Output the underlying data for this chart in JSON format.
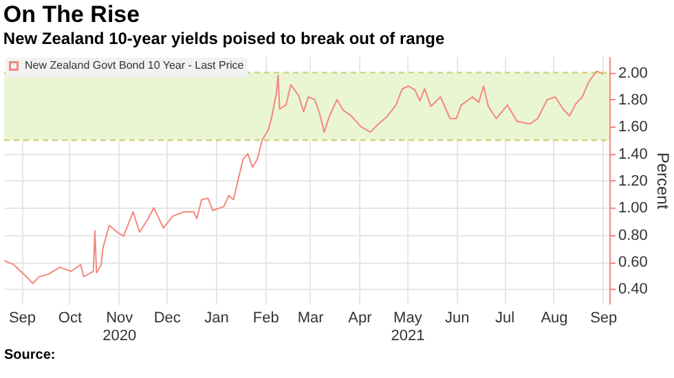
{
  "chart_data": {
    "type": "line",
    "title": "On The Rise",
    "subtitle": "New Zealand 10-year yields poised to break out of range",
    "ylabel": "Percent",
    "annotations": [
      "Source:"
    ],
    "x": [
      "2020-09-04",
      "2020-09-10",
      "2020-09-18",
      "2020-09-22",
      "2020-09-26",
      "2020-10-02",
      "2020-10-09",
      "2020-10-16",
      "2020-10-22",
      "2020-10-24",
      "2020-10-30",
      "2020-10-31",
      "2020-11-01",
      "2020-11-04",
      "2020-11-05",
      "2020-11-09",
      "2020-11-14",
      "2020-11-18",
      "2020-11-24",
      "2020-11-28",
      "2020-12-03",
      "2020-12-07",
      "2020-12-13",
      "2020-12-19",
      "2020-12-26",
      "2021-01-01",
      "2021-01-03",
      "2021-01-06",
      "2021-01-10",
      "2021-01-13",
      "2021-01-20",
      "2021-01-23",
      "2021-01-26",
      "2021-01-29",
      "2021-02-01",
      "2021-02-04",
      "2021-02-07",
      "2021-02-10",
      "2021-02-13",
      "2021-02-17",
      "2021-02-19",
      "2021-02-22",
      "2021-02-23",
      "2021-02-24",
      "2021-02-28",
      "2021-03-03",
      "2021-03-08",
      "2021-03-11",
      "2021-03-14",
      "2021-03-18",
      "2021-03-21",
      "2021-03-24",
      "2021-03-27",
      "2021-04-01",
      "2021-04-05",
      "2021-04-10",
      "2021-04-16",
      "2021-04-22",
      "2021-04-27",
      "2021-05-02",
      "2021-05-08",
      "2021-05-12",
      "2021-05-16",
      "2021-05-20",
      "2021-05-23",
      "2021-05-26",
      "2021-05-30",
      "2021-06-05",
      "2021-06-11",
      "2021-06-15",
      "2021-06-18",
      "2021-06-25",
      "2021-06-29",
      "2021-07-02",
      "2021-07-05",
      "2021-07-10",
      "2021-07-17",
      "2021-07-23",
      "2021-07-31",
      "2021-08-05",
      "2021-08-11",
      "2021-08-16",
      "2021-08-21",
      "2021-08-25",
      "2021-08-29",
      "2021-09-02",
      "2021-09-06",
      "2021-09-11",
      "2021-09-15"
    ],
    "series": [
      {
        "name": "New Zealand Govt Bond 10 Year - Last Price",
        "color": "#f4877b",
        "values": [
          0.61,
          0.58,
          0.49,
          0.44,
          0.49,
          0.51,
          0.56,
          0.53,
          0.58,
          0.49,
          0.53,
          0.83,
          0.52,
          0.58,
          0.7,
          0.87,
          0.82,
          0.79,
          0.97,
          0.82,
          0.91,
          1.0,
          0.85,
          0.94,
          0.97,
          0.97,
          0.92,
          1.06,
          1.07,
          0.98,
          1.01,
          1.09,
          1.06,
          1.21,
          1.36,
          1.4,
          1.3,
          1.36,
          1.5,
          1.58,
          1.67,
          1.85,
          1.98,
          1.73,
          1.76,
          1.91,
          1.83,
          1.71,
          1.82,
          1.8,
          1.7,
          1.56,
          1.67,
          1.8,
          1.72,
          1.68,
          1.6,
          1.56,
          1.62,
          1.67,
          1.76,
          1.88,
          1.9,
          1.87,
          1.79,
          1.88,
          1.75,
          1.82,
          1.66,
          1.66,
          1.76,
          1.82,
          1.78,
          1.9,
          1.75,
          1.66,
          1.76,
          1.64,
          1.62,
          1.66,
          1.8,
          1.82,
          1.73,
          1.68,
          1.77,
          1.82,
          1.93,
          2.01,
          1.99
        ]
      }
    ],
    "xlim": [
      "2020-09-04",
      "2021-09-19"
    ],
    "xticks": [
      {
        "value": "2020-09-15",
        "label": "Sep"
      },
      {
        "value": "2020-10-15",
        "label": "Oct"
      },
      {
        "value": "2020-11-15",
        "label": "Nov\n2020"
      },
      {
        "value": "2020-12-15",
        "label": "Dec"
      },
      {
        "value": "2021-01-15",
        "label": "Jan"
      },
      {
        "value": "2021-02-15",
        "label": "Feb"
      },
      {
        "value": "2021-03-15",
        "label": "Mar"
      },
      {
        "value": "2021-04-15",
        "label": "Apr"
      },
      {
        "value": "2021-05-15",
        "label": "May\n2021"
      },
      {
        "value": "2021-06-15",
        "label": "Jun"
      },
      {
        "value": "2021-07-15",
        "label": "Jul"
      },
      {
        "value": "2021-08-15",
        "label": "Aug"
      },
      {
        "value": "2021-09-15",
        "label": "Sep"
      }
    ],
    "ylim": [
      0.29,
      2.12
    ],
    "yticks": [
      {
        "value": 0.4,
        "label": "0.40"
      },
      {
        "value": 0.6,
        "label": "0.60"
      },
      {
        "value": 0.8,
        "label": "0.80"
      },
      {
        "value": 1.0,
        "label": "1.00"
      },
      {
        "value": 1.2,
        "label": "1.20"
      },
      {
        "value": 1.4,
        "label": "1.40"
      },
      {
        "value": 1.6,
        "label": "1.60"
      },
      {
        "value": 1.8,
        "label": "1.80"
      },
      {
        "value": 2.0,
        "label": "2.00"
      }
    ],
    "bands": [
      {
        "axis": "y",
        "from": 1.5,
        "to": 2.0,
        "color": "#eaf5d3"
      }
    ],
    "ref_lines": [
      {
        "axis": "y",
        "value": 1.5,
        "color": "#c9d47a",
        "line_style": "dashed"
      },
      {
        "axis": "y",
        "value": 2.0,
        "color": "#c9d47a",
        "line_style": "dashed"
      }
    ],
    "grid": true,
    "legend": "top left",
    "marker": "none",
    "line_style": "solid"
  }
}
